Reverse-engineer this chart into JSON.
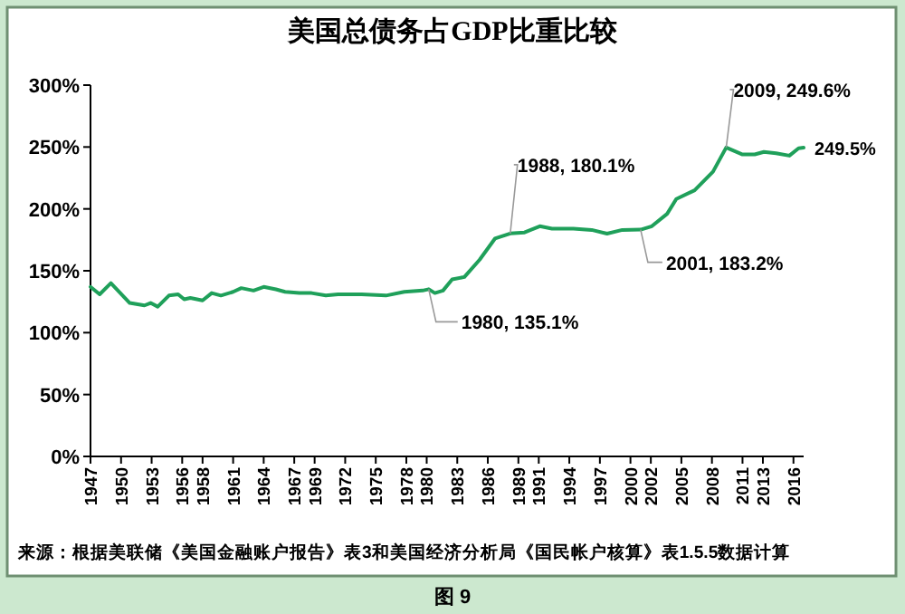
{
  "chart_data": {
    "type": "line",
    "title": "美国总债务占GDP比重比较",
    "x": [
      1947.0,
      1947.9,
      1949.0,
      1950.85,
      1952.3,
      1952.9,
      1953.6,
      1954.7,
      1955.6,
      1956.2,
      1956.8,
      1958.0,
      1958.9,
      1959.8,
      1961.0,
      1961.8,
      1963.0,
      1964.0,
      1965.2,
      1966.1,
      1967.5,
      1968.7,
      1970.1,
      1971.3,
      1973.6,
      1976.0,
      1977.8,
      1979.6,
      1980.2,
      1980.8,
      1981.6,
      1982.5,
      1983.7,
      1985.2,
      1986.7,
      1988.2,
      1989.6,
      1991.1,
      1992.3,
      1994.4,
      1996.2,
      1997.7,
      1999.2,
      2001.0,
      2002.1,
      2003.6,
      2004.5,
      2006.3,
      2008.1,
      2009.4,
      2011.0,
      2012.2,
      2013.1,
      2014.3,
      2015.6,
      2016.5,
      2017.0
    ],
    "series": [
      {
        "color": "#1fa05a",
        "values": [
          137,
          131,
          140,
          124,
          122,
          124,
          121,
          130,
          131,
          127,
          128,
          126,
          132,
          130,
          133,
          136,
          134,
          137,
          135,
          133,
          132,
          132,
          130,
          131,
          131,
          130,
          133,
          134,
          135.1,
          132,
          134,
          143,
          145,
          159,
          176,
          180.1,
          181,
          186,
          184,
          184,
          183,
          180,
          183,
          183.2,
          186,
          196,
          208,
          215,
          230,
          249.6,
          244,
          244,
          246,
          245,
          243,
          249,
          249.5
        ]
      }
    ],
    "xlim": [
      1947,
      2017
    ],
    "xticks": [
      1947,
      1950,
      1953,
      1956,
      1958,
      1961,
      1964,
      1967,
      1969,
      1972,
      1975,
      1978,
      1980,
      1983,
      1986,
      1989,
      1991,
      1994,
      1997,
      2000,
      2002,
      2005,
      2008,
      2011,
      2013,
      2016
    ],
    "ylim": [
      0,
      300
    ],
    "yticks": [
      {
        "value": 0,
        "label": "0%"
      },
      {
        "value": 50,
        "label": "50%"
      },
      {
        "value": 100,
        "label": "100%"
      },
      {
        "value": 150,
        "label": "150%"
      },
      {
        "value": 200,
        "label": "200%"
      },
      {
        "value": 250,
        "label": "250%"
      },
      {
        "value": 300,
        "label": "300%"
      }
    ],
    "grid": false,
    "marker": "none",
    "line_style": "solid",
    "annotations": [
      {
        "text": "1980, 135.1%",
        "x": 1980.2,
        "y": 135.1
      },
      {
        "text": "1988, 180.1%",
        "x": 1988.2,
        "y": 180.1
      },
      {
        "text": "2001, 183.2%",
        "x": 2001.0,
        "y": 183.2
      },
      {
        "text": "2009, 249.6%",
        "x": 2009.4,
        "y": 249.6
      },
      {
        "text": "249.5%",
        "x": 2017.0,
        "y": 249.5
      },
      "来源：根据美联储《美国金融账户报告》表3和美国经济分析局《国民帐户核算》表1.5.5数据计算",
      "图 9"
    ]
  }
}
